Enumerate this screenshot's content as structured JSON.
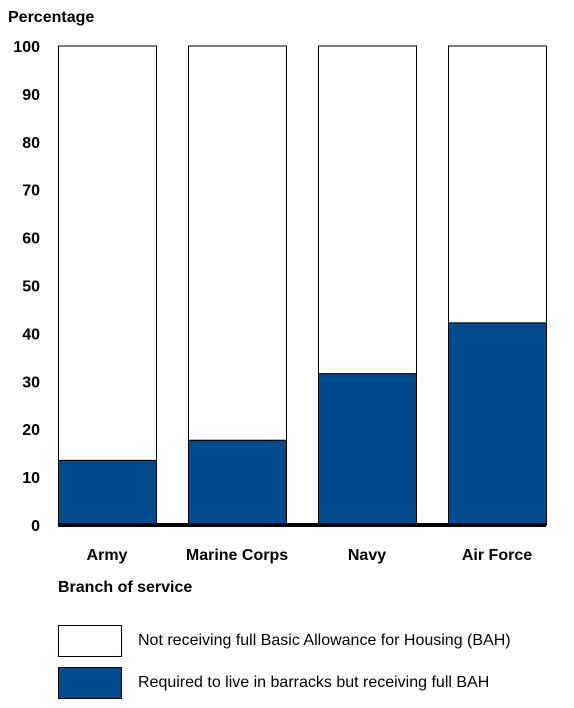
{
  "chart_data": {
    "type": "bar",
    "stacked": true,
    "title": "",
    "ylabel": "Percentage",
    "xlabel": "Branch of service",
    "ylim": [
      0,
      100
    ],
    "yticks": [
      "0",
      "10",
      "20",
      "30",
      "40",
      "50",
      "60",
      "70",
      "80",
      "90",
      "100"
    ],
    "categories": [
      "Army",
      "Marine Corps",
      "Navy",
      "Air Force"
    ],
    "series": [
      {
        "name": "Required to live in barracks but receiving full BAH",
        "values": [
          13.5,
          17.7,
          31.6,
          42.2
        ],
        "color": "#004b8d"
      },
      {
        "name": "Not receiving full Basic Allowance for Housing (BAH)",
        "values": [
          86.5,
          82.3,
          68.4,
          57.8
        ],
        "color": "#ffffff"
      }
    ],
    "grid": false,
    "legend_position": "bottom-left"
  },
  "legend": [
    {
      "label": "Not receiving full Basic Allowance for Housing (BAH)",
      "color": "#ffffff"
    },
    {
      "label": "Required to live in barracks but receiving full BAH",
      "color": "#004b8d"
    }
  ]
}
